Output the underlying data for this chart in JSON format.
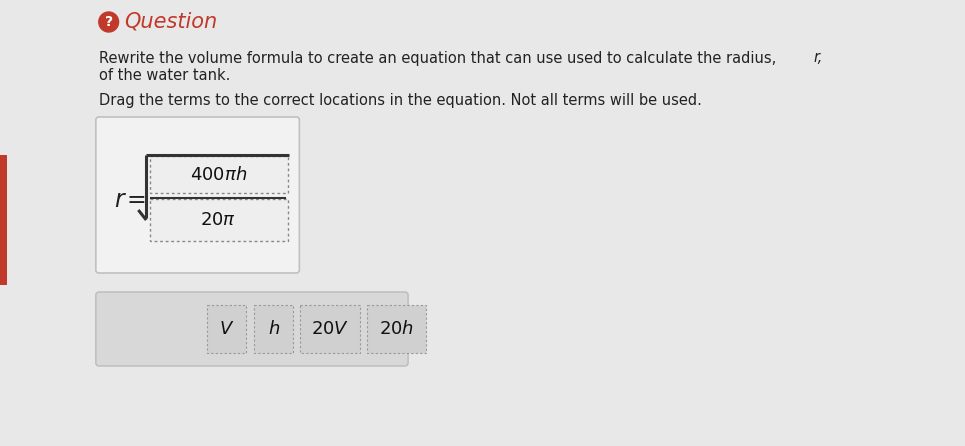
{
  "bg_color": "#e8e8e8",
  "page_bg": "#f0f0f0",
  "title_text": "Question",
  "title_color": "#c0392b",
  "body_text_1": "Rewrite the volume formula to create an equation that can use used to calculate the radius, ",
  "body_text_1_italic": "r,",
  "body_text_1b": "of the water tank.",
  "body_text_2": "Drag the terms to the correct locations in the equation. Not all terms will be used.",
  "eq_box_bg": "#f5f5f5",
  "eq_box_border": "#bbbbbb",
  "num_text": "400πh",
  "den_text": "20π",
  "drag_box_bg": "#d8d8d8",
  "drag_terms": [
    "V",
    "h",
    "20V",
    "20h"
  ],
  "left_bar_color": "#c0392b",
  "text_color": "#222222",
  "sqrt_color": "#333333"
}
